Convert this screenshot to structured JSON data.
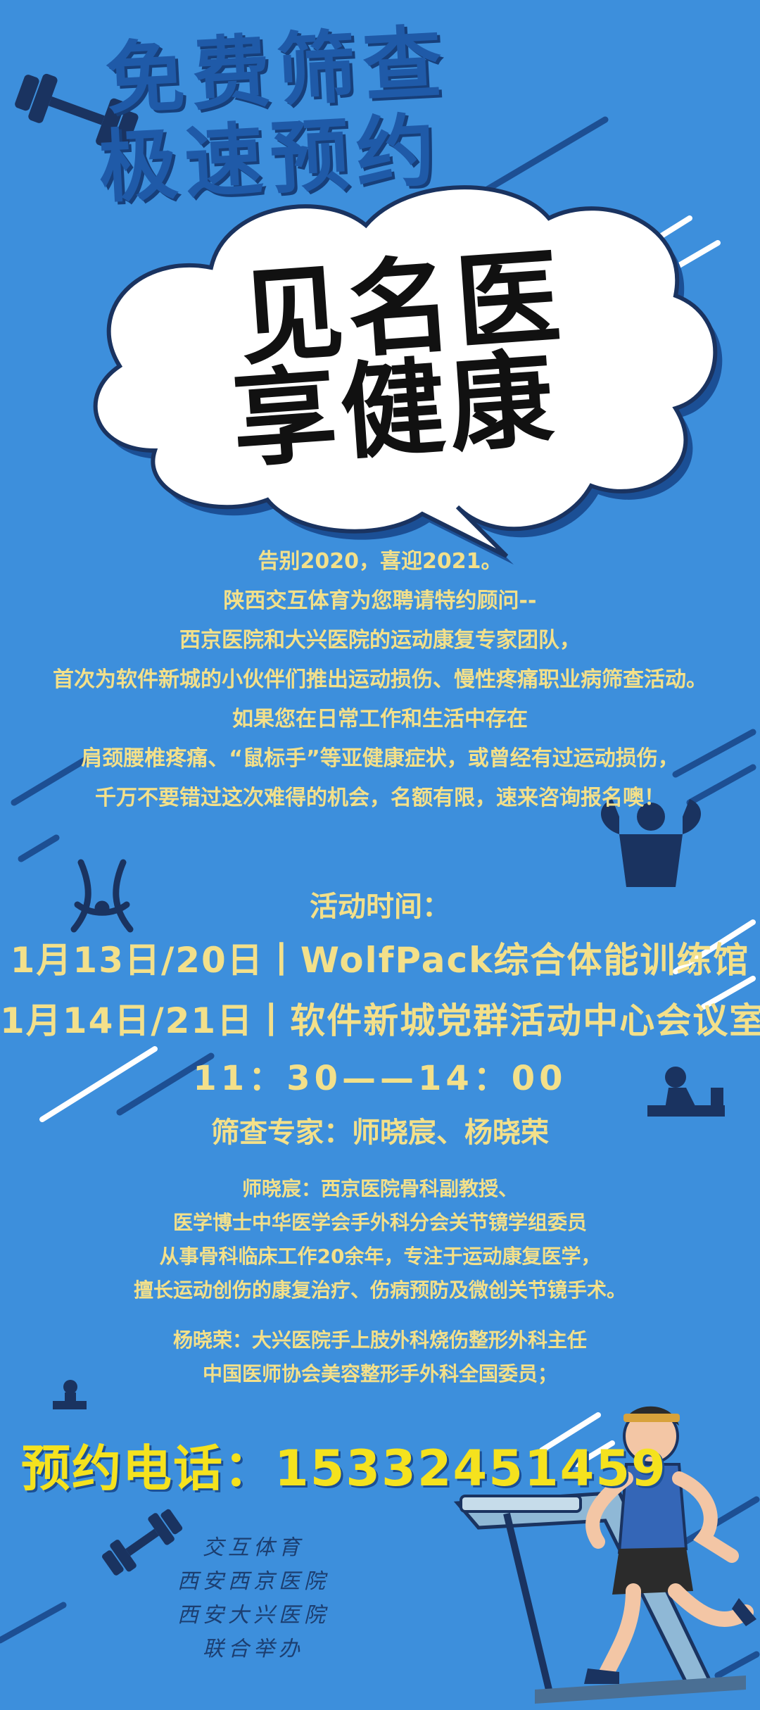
{
  "header": {
    "line1": "免费筛查",
    "line2": "极速预约"
  },
  "cloud": {
    "line1": "见名医",
    "line2": "享健康"
  },
  "intro": [
    "告别2020，喜迎2021。",
    "陕西交互体育为您聘请特约顾问--",
    "西京医院和大兴医院的运动康复专家团队，",
    "首次为软件新城的小伙伴们推出运动损伤、慢性疼痛职业病筛查活动。",
    "如果您在日常工作和生活中存在",
    "肩颈腰椎疼痛、“鼠标手”等亚健康症状，或曾经有过运动损伤，",
    "千万不要错过这次难得的机会，名额有限，速来咨询报名噢！"
  ],
  "schedule": {
    "label": "活动时间：",
    "session1": "1月13日/20日丨WolfPack综合体能训练馆",
    "session2": "1月14日/21日丨软件新城党群活动中心会议室",
    "time": "11：30——14：00",
    "experts": "筛查专家：师晓宸、杨晓荣"
  },
  "bio1": [
    "师晓宸：西京医院骨科副教授、",
    "医学博士中华医学会手外科分会关节镜学组委员",
    "从事骨科临床工作20余年，专注于运动康复医学，",
    "擅长运动创伤的康复治疗、伤病预防及微创关节镜手术。"
  ],
  "bio2": [
    "杨晓荣：大兴医院手上肢外科烧伤整形外科主任",
    "中国医师协会美容整形手外科全国委员；"
  ],
  "phone": {
    "text": "预约电话：15332451459"
  },
  "organizers": [
    "交互体育",
    "西安西京医院",
    "西安大兴医院",
    "联合举办"
  ],
  "colors": {
    "background": "#3d8fdc",
    "text_yellow": "#f3e08a",
    "phone_yellow": "#f5e21e",
    "title_blue": "#1f5aa8"
  }
}
